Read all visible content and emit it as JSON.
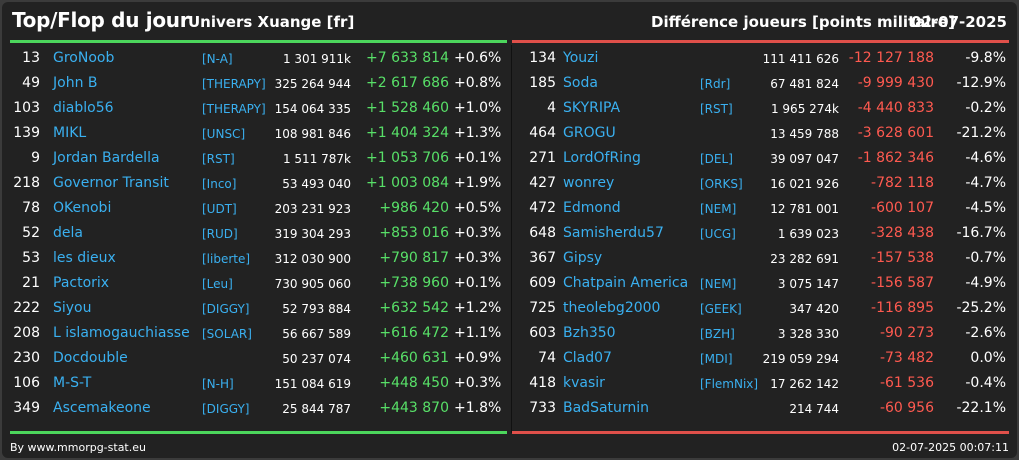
{
  "header": {
    "title": "Top/Flop du jour",
    "univers": "Univers Xuange [fr]",
    "diff_label": "Différence joueurs [points militaire]",
    "date": "02-07-2025"
  },
  "colors": {
    "positive": "#58e068",
    "negative": "#ff5a50",
    "name": "#3ab0f0",
    "top_bar": "#4cd65c",
    "flop_bar": "#e0504a"
  },
  "top": [
    {
      "rank": "13",
      "name": "GroNoob",
      "tag": "[N-A]",
      "points": "1 301 911k",
      "diff": "+7 633 814",
      "pct": "+0.6%"
    },
    {
      "rank": "49",
      "name": "John B",
      "tag": "[THERAPY]",
      "points": "325 264 944",
      "diff": "+2 617 686",
      "pct": "+0.8%"
    },
    {
      "rank": "103",
      "name": "diablo56",
      "tag": "[THERAPY]",
      "points": "154 064 335",
      "diff": "+1 528 460",
      "pct": "+1.0%"
    },
    {
      "rank": "139",
      "name": "MIKL",
      "tag": "[UNSC]",
      "points": "108 981 846",
      "diff": "+1 404 324",
      "pct": "+1.3%"
    },
    {
      "rank": "9",
      "name": "Jordan Bardella",
      "tag": "[RST]",
      "points": "1 511 787k",
      "diff": "+1 053 706",
      "pct": "+0.1%"
    },
    {
      "rank": "218",
      "name": "Governor Transit",
      "tag": "[Inco]",
      "points": "53 493 040",
      "diff": "+1 003 084",
      "pct": "+1.9%"
    },
    {
      "rank": "78",
      "name": "OKenobi",
      "tag": "[UDT]",
      "points": "203 231 923",
      "diff": "+986 420",
      "pct": "+0.5%"
    },
    {
      "rank": "52",
      "name": "dela",
      "tag": "[RUD]",
      "points": "319 304 293",
      "diff": "+853 016",
      "pct": "+0.3%"
    },
    {
      "rank": "53",
      "name": "les dieux",
      "tag": "[liberte]",
      "points": "312 030 900",
      "diff": "+790 817",
      "pct": "+0.3%"
    },
    {
      "rank": "21",
      "name": "Pactorix",
      "tag": "[Leu]",
      "points": "730 905 060",
      "diff": "+738 960",
      "pct": "+0.1%"
    },
    {
      "rank": "222",
      "name": "Siyou",
      "tag": "[DIGGY]",
      "points": "52 793 884",
      "diff": "+632 542",
      "pct": "+1.2%"
    },
    {
      "rank": "208",
      "name": "L islamogauchiasse",
      "tag": "[SOLAR]",
      "points": "56 667 589",
      "diff": "+616 472",
      "pct": "+1.1%"
    },
    {
      "rank": "230",
      "name": "Docdouble",
      "tag": "",
      "points": "50 237 074",
      "diff": "+460 631",
      "pct": "+0.9%"
    },
    {
      "rank": "106",
      "name": "M-S-T",
      "tag": "[N-H]",
      "points": "151 084 619",
      "diff": "+448 450",
      "pct": "+0.3%"
    },
    {
      "rank": "349",
      "name": "Ascemakeone",
      "tag": "[DIGGY]",
      "points": "25 844 787",
      "diff": "+443 870",
      "pct": "+1.8%"
    }
  ],
  "flop": [
    {
      "rank": "134",
      "name": "Youzi",
      "tag": "",
      "points": "111 411 626",
      "diff": "-12 127 188",
      "pct": "-9.8%"
    },
    {
      "rank": "185",
      "name": "Soda",
      "tag": "[Rdr]",
      "points": "67 481 824",
      "diff": "-9 999 430",
      "pct": "-12.9%"
    },
    {
      "rank": "4",
      "name": "SKYRIPA",
      "tag": "[RST]",
      "points": "1 965 274k",
      "diff": "-4 440 833",
      "pct": "-0.2%"
    },
    {
      "rank": "464",
      "name": "GROGU",
      "tag": "",
      "points": "13 459 788",
      "diff": "-3 628 601",
      "pct": "-21.2%"
    },
    {
      "rank": "271",
      "name": "LordOfRing",
      "tag": "[DEL]",
      "points": "39 097 047",
      "diff": "-1 862 346",
      "pct": "-4.6%"
    },
    {
      "rank": "427",
      "name": "wonrey",
      "tag": "[ORKS]",
      "points": "16 021 926",
      "diff": "-782 118",
      "pct": "-4.7%"
    },
    {
      "rank": "472",
      "name": "Edmond",
      "tag": "[NEM]",
      "points": "12 781 001",
      "diff": "-600 107",
      "pct": "-4.5%"
    },
    {
      "rank": "648",
      "name": "Samisherdu57",
      "tag": "[UCG]",
      "points": "1 639 023",
      "diff": "-328 438",
      "pct": "-16.7%"
    },
    {
      "rank": "367",
      "name": "Gipsy",
      "tag": "",
      "points": "23 282 691",
      "diff": "-157 538",
      "pct": "-0.7%"
    },
    {
      "rank": "609",
      "name": "Chatpain America",
      "tag": "[NEM]",
      "points": "3 075 147",
      "diff": "-156 587",
      "pct": "-4.9%"
    },
    {
      "rank": "725",
      "name": "theolebg2000",
      "tag": "[GEEK]",
      "points": "347 420",
      "diff": "-116 895",
      "pct": "-25.2%"
    },
    {
      "rank": "603",
      "name": "Bzh350",
      "tag": "[BZH]",
      "points": "3 328 330",
      "diff": "-90 273",
      "pct": "-2.6%"
    },
    {
      "rank": "74",
      "name": "Clad07",
      "tag": "[MDI]",
      "points": "219 059 294",
      "diff": "-73 482",
      "pct": "0.0%"
    },
    {
      "rank": "418",
      "name": "kvasir",
      "tag": "[FlemNix]",
      "points": "17 262 142",
      "diff": "-61 536",
      "pct": "-0.4%"
    },
    {
      "rank": "733",
      "name": "BadSaturnin",
      "tag": "",
      "points": "214 744",
      "diff": "-60 956",
      "pct": "-22.1%"
    }
  ],
  "footer": {
    "source": "By www.mmorpg-stat.eu",
    "timestamp": "02-07-2025 00:07:11"
  }
}
